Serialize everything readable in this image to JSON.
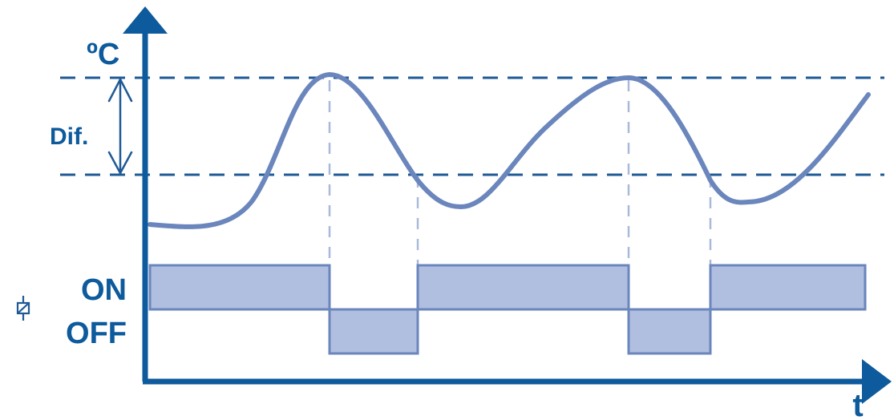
{
  "labels": {
    "y_unit": "ºC",
    "x_unit": "t",
    "differential": "Dif.",
    "state_on": "ON",
    "state_off": "OFF"
  },
  "icons": {
    "relay": "relay-coil-icon"
  },
  "colors": {
    "axis": "#0d5a9c",
    "label": "#0d5a9c",
    "setpoint_line": "#1f5a96",
    "temperature_curve": "#6a86bd",
    "state_fill": "#b0bee0",
    "state_stroke": "#6a86bd",
    "guide_line": "#a9bad9"
  },
  "thermostat": {
    "states": [
      "on",
      "off",
      "on",
      "off",
      "on"
    ]
  }
}
